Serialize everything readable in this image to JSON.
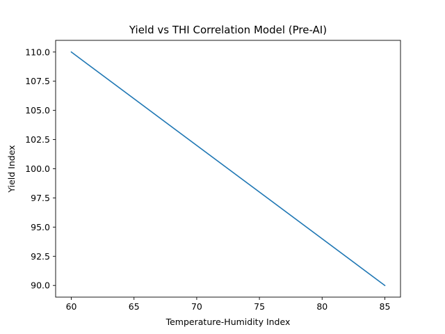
{
  "chart_data": {
    "type": "line",
    "title": "Yield vs THI Correlation Model (Pre-AI)",
    "xlabel": "Temperature-Humidity Index",
    "ylabel": "Yield Index",
    "xlim": [
      58.75,
      86.25
    ],
    "ylim": [
      89.0,
      111.0
    ],
    "x_ticks": [
      60,
      65,
      70,
      75,
      80,
      85
    ],
    "y_ticks": [
      "90.0",
      "92.5",
      "95.0",
      "97.5",
      "100.0",
      "102.5",
      "105.0",
      "107.5",
      "110.0"
    ],
    "grid": false,
    "series": [
      {
        "name": "Yield Index",
        "color": "#1f77b4",
        "x": [
          60,
          85
        ],
        "y": [
          110,
          90
        ]
      }
    ]
  }
}
